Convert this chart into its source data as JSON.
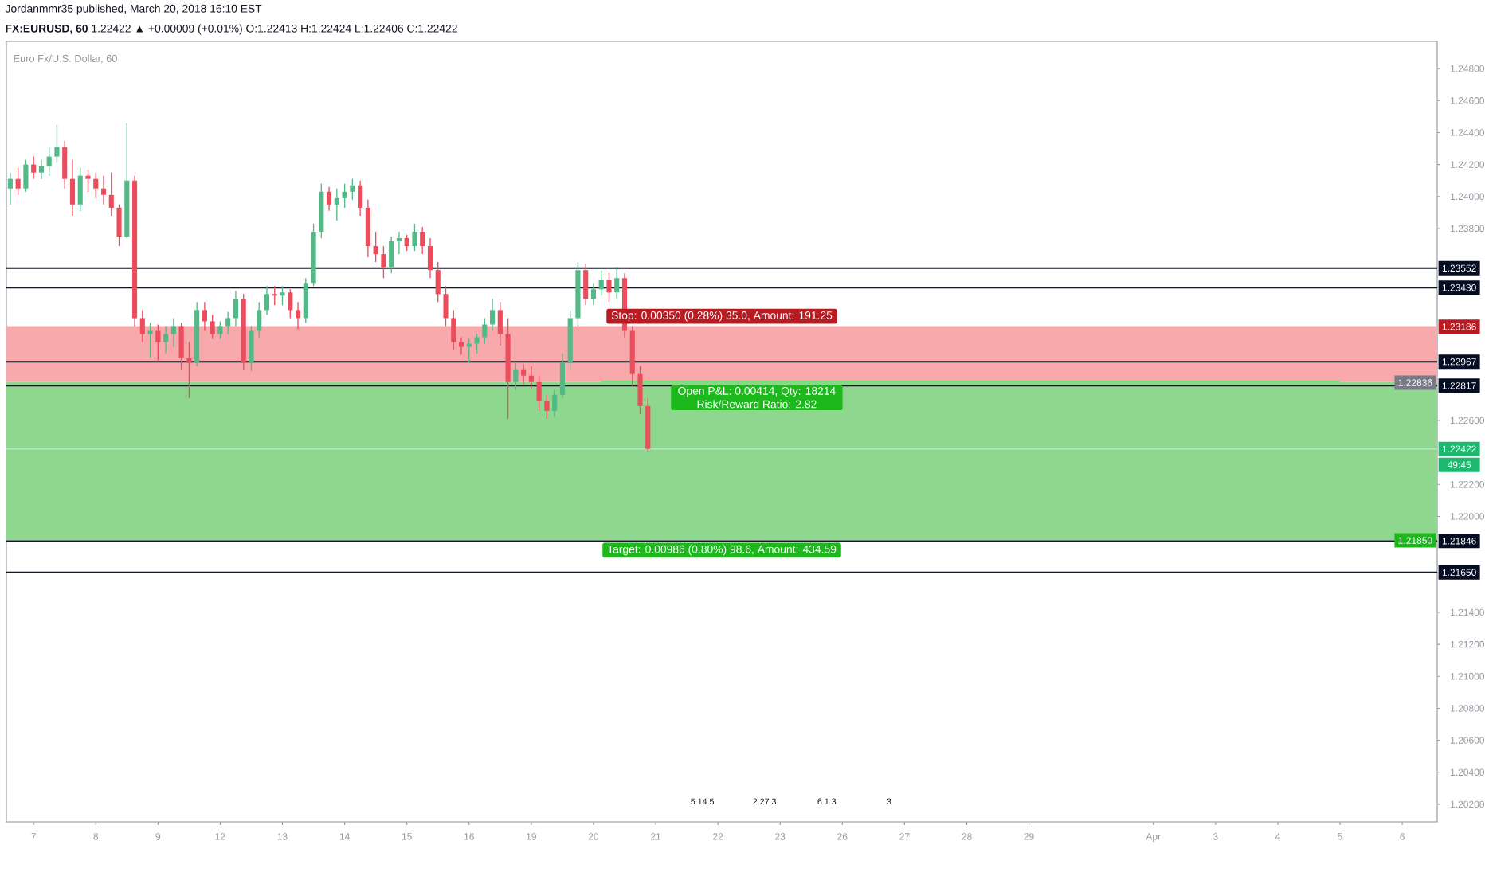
{
  "chart_data": {
    "type": "candlestick",
    "title": "**FX:EURUSD, 60** 1.22422 ▲ +0.00009 (+0.01%) O:1.22413 H:1.22424 L:1.22406 C:1.22422",
    "subtitle": "Euro Fx/U.S. Dollar, 60",
    "annotations": [
      "Jordanmmr35 published, March 20, 2018 16:10 EST",
      "5 14 5",
      "2 27 3",
      "6 1 3",
      "3",
      {
        "text": "1.23186",
        "y": 1.23186
      },
      {
        "text": "1.22836",
        "y": 1.22836
      },
      {
        "text": "1.21850",
        "y": 1.2185
      },
      {
        "text": "49:45",
        "y": 1.22422
      }
    ],
    "categories": [
      null,
      null,
      null,
      "7",
      null,
      null,
      null,
      null,
      null,
      null,
      null,
      "8",
      null,
      null,
      null,
      null,
      null,
      null,
      null,
      "9",
      null,
      null,
      null,
      null,
      null,
      null,
      null,
      "12",
      null,
      null,
      null,
      null,
      null,
      null,
      null,
      "13",
      null,
      null,
      null,
      null,
      null,
      null,
      null,
      "14",
      null,
      null,
      null,
      null,
      null,
      null,
      null,
      "15",
      null,
      null,
      null,
      null,
      null,
      null,
      null,
      "16",
      null,
      null,
      null,
      null,
      null,
      null,
      null,
      "19",
      null,
      null,
      null,
      null,
      null,
      null,
      null,
      "20",
      null,
      null,
      null,
      null,
      null,
      null,
      null,
      "21",
      null,
      null,
      null,
      null,
      null,
      null,
      null,
      "22",
      null,
      null,
      null,
      null,
      null,
      null,
      null,
      "23",
      null,
      null,
      null,
      null,
      null,
      null,
      null,
      "26",
      null,
      null,
      null,
      null,
      null,
      null,
      null,
      "27",
      null,
      null,
      null,
      null,
      null,
      null,
      null,
      "28",
      null,
      null,
      null,
      null,
      null,
      null,
      null,
      "29",
      null,
      null,
      null,
      null,
      null,
      null,
      null,
      null,
      null,
      null,
      null,
      null,
      null,
      null,
      null,
      "Apr",
      null,
      null,
      null,
      null,
      null,
      null,
      null,
      "3",
      null,
      null,
      null,
      null,
      null,
      null,
      null,
      "4",
      null,
      null,
      null,
      null,
      null,
      null,
      null,
      "5",
      null,
      null,
      null,
      null,
      null,
      null,
      null,
      "6",
      null,
      null,
      null,
      null
    ],
    "ohlc": [
      [
        1.2405,
        1.2415,
        1.2395,
        1.2411
      ],
      [
        1.2411,
        1.2418,
        1.2401,
        1.2405
      ],
      [
        1.2405,
        1.2423,
        1.2403,
        1.242
      ],
      [
        1.242,
        1.2425,
        1.2411,
        1.2415
      ],
      [
        1.2415,
        1.2423,
        1.2411,
        1.2419
      ],
      [
        1.2419,
        1.2431,
        1.2413,
        1.2425
      ],
      [
        1.2425,
        1.2445,
        1.2421,
        1.2431
      ],
      [
        1.2431,
        1.2435,
        1.2405,
        1.2411
      ],
      [
        1.2411,
        1.2423,
        1.2388,
        1.2395
      ],
      [
        1.2395,
        1.2418,
        1.2391,
        1.2413
      ],
      [
        1.2413,
        1.2417,
        1.2403,
        1.2411
      ],
      [
        1.2411,
        1.2415,
        1.2399,
        1.2405
      ],
      [
        1.2405,
        1.2413,
        1.2395,
        1.2401
      ],
      [
        1.2401,
        1.2415,
        1.2388,
        1.2393
      ],
      [
        1.2393,
        1.2395,
        1.2369,
        1.2375
      ],
      [
        1.2375,
        1.2446,
        1.2374,
        1.241
      ],
      [
        1.241,
        1.2413,
        1.2319,
        1.2324
      ],
      [
        1.2324,
        1.2329,
        1.2309,
        1.2314
      ],
      [
        1.2314,
        1.2321,
        1.2299,
        1.2316
      ],
      [
        1.2316,
        1.232,
        1.2297,
        1.2309
      ],
      [
        1.2309,
        1.2319,
        1.2302,
        1.2314
      ],
      [
        1.2314,
        1.2324,
        1.2306,
        1.2319
      ],
      [
        1.2319,
        1.2321,
        1.2292,
        1.2299
      ],
      [
        1.2299,
        1.2309,
        1.2274,
        1.2296
      ],
      [
        1.2296,
        1.2334,
        1.2294,
        1.2329
      ],
      [
        1.2329,
        1.2334,
        1.2316,
        1.2322
      ],
      [
        1.2322,
        1.2326,
        1.2311,
        1.2314
      ],
      [
        1.2314,
        1.2322,
        1.2311,
        1.2319
      ],
      [
        1.2319,
        1.2328,
        1.2314,
        1.2324
      ],
      [
        1.2324,
        1.2341,
        1.2319,
        1.2336
      ],
      [
        1.2336,
        1.2339,
        1.2292,
        1.2296
      ],
      [
        1.2296,
        1.2319,
        1.2291,
        1.2316
      ],
      [
        1.2316,
        1.2334,
        1.2312,
        1.2329
      ],
      [
        1.2329,
        1.2344,
        1.2326,
        1.2339
      ],
      [
        1.2339,
        1.2344,
        1.2332,
        1.2338
      ],
      [
        1.2338,
        1.2344,
        1.2332,
        1.234
      ],
      [
        1.234,
        1.2342,
        1.2324,
        1.2329
      ],
      [
        1.2329,
        1.2334,
        1.2317,
        1.2324
      ],
      [
        1.2324,
        1.2349,
        1.2321,
        1.2346
      ],
      [
        1.2346,
        1.2383,
        1.2344,
        1.2378
      ],
      [
        1.2378,
        1.2408,
        1.2374,
        1.2403
      ],
      [
        1.2403,
        1.2406,
        1.2391,
        1.2395
      ],
      [
        1.2395,
        1.2405,
        1.2385,
        1.2399
      ],
      [
        1.2399,
        1.2408,
        1.2393,
        1.2403
      ],
      [
        1.2403,
        1.2411,
        1.2398,
        1.2407
      ],
      [
        1.2407,
        1.241,
        1.2388,
        1.2393
      ],
      [
        1.2393,
        1.2398,
        1.2362,
        1.2369
      ],
      [
        1.2369,
        1.2378,
        1.2359,
        1.2364
      ],
      [
        1.2364,
        1.2369,
        1.2349,
        1.2356
      ],
      [
        1.2356,
        1.2375,
        1.2352,
        1.2372
      ],
      [
        1.2372,
        1.2378,
        1.2364,
        1.2374
      ],
      [
        1.2374,
        1.2376,
        1.2366,
        1.2369
      ],
      [
        1.2369,
        1.2383,
        1.2366,
        1.2378
      ],
      [
        1.2378,
        1.2381,
        1.2364,
        1.2369
      ],
      [
        1.2369,
        1.2374,
        1.2349,
        1.2354
      ],
      [
        1.2354,
        1.2359,
        1.2334,
        1.2339
      ],
      [
        1.2339,
        1.2344,
        1.2319,
        1.2324
      ],
      [
        1.2324,
        1.2329,
        1.2304,
        1.2309
      ],
      [
        1.2309,
        1.2312,
        1.2301,
        1.2306
      ],
      [
        1.2306,
        1.2311,
        1.2296,
        1.2308
      ],
      [
        1.2308,
        1.2314,
        1.2302,
        1.2312
      ],
      [
        1.2312,
        1.2324,
        1.2308,
        1.232
      ],
      [
        1.232,
        1.2336,
        1.2316,
        1.2329
      ],
      [
        1.2329,
        1.2334,
        1.2307,
        1.2314
      ],
      [
        1.2314,
        1.2324,
        1.2261,
        1.2284
      ],
      [
        1.2284,
        1.2296,
        1.2279,
        1.2292
      ],
      [
        1.2292,
        1.2295,
        1.2282,
        1.2288
      ],
      [
        1.2288,
        1.2294,
        1.228,
        1.2284
      ],
      [
        1.2284,
        1.2288,
        1.2266,
        1.2272
      ],
      [
        1.2272,
        1.2276,
        1.2261,
        1.2266
      ],
      [
        1.2266,
        1.2279,
        1.2262,
        1.2276
      ],
      [
        1.2276,
        1.2302,
        1.2274,
        1.2296
      ],
      [
        1.2296,
        1.2329,
        1.2292,
        1.2324
      ],
      [
        1.2324,
        1.2359,
        1.2319,
        1.2354
      ],
      [
        1.2354,
        1.2358,
        1.2332,
        1.2336
      ],
      [
        1.2336,
        1.2346,
        1.2332,
        1.2342
      ],
      [
        1.2342,
        1.2354,
        1.2338,
        1.2348
      ],
      [
        1.2348,
        1.2352,
        1.2334,
        1.234
      ],
      [
        1.234,
        1.2356,
        1.2336,
        1.2349
      ],
      [
        1.2349,
        1.2352,
        1.2312,
        1.2316
      ],
      [
        1.2316,
        1.2319,
        1.2281,
        1.2289
      ],
      [
        1.2289,
        1.2294,
        1.2264,
        1.2269
      ],
      [
        1.2269,
        1.2274,
        1.224,
        1.22422
      ],
      null,
      null,
      null,
      null,
      null,
      null,
      null,
      null,
      null,
      null,
      null,
      null,
      null,
      null,
      null,
      null,
      null,
      null,
      null,
      null,
      null,
      null,
      null,
      null,
      null,
      null,
      null,
      null,
      null,
      null,
      null,
      null,
      null,
      null,
      null,
      null,
      null,
      null,
      null,
      null,
      null,
      null,
      null,
      null,
      null,
      null,
      null,
      null,
      null,
      null,
      null,
      null,
      null,
      null,
      null,
      null,
      null,
      null,
      null,
      null,
      null,
      null,
      null,
      null,
      null,
      null,
      null,
      null,
      null,
      null,
      null,
      null,
      null,
      null,
      null,
      null,
      null,
      null,
      null,
      null,
      null,
      null,
      null,
      null,
      null,
      null,
      null,
      null,
      null,
      null,
      null,
      null,
      null,
      null,
      null,
      null,
      null,
      null,
      null,
      null,
      null
    ],
    "ylim": [
      1.2009,
      1.2497
    ],
    "yticks": [
      {
        "value": 1.248,
        "label": "1.24800"
      },
      {
        "value": 1.246,
        "label": "1.24600"
      },
      {
        "value": 1.244,
        "label": "1.24400"
      },
      {
        "value": 1.242,
        "label": "1.24200"
      },
      {
        "value": 1.24,
        "label": "1.24000"
      },
      {
        "value": 1.238,
        "label": "1.23800"
      },
      {
        "value": 1.226,
        "label": "1.22600"
      },
      {
        "value": 1.222,
        "label": "1.22200"
      },
      {
        "value": 1.22,
        "label": "1.22000"
      },
      {
        "value": 1.214,
        "label": "1.21400"
      },
      {
        "value": 1.212,
        "label": "1.21200"
      },
      {
        "value": 1.21,
        "label": "1.21000"
      },
      {
        "value": 1.208,
        "label": "1.20800"
      },
      {
        "value": 1.206,
        "label": "1.20600"
      },
      {
        "value": 1.204,
        "label": "1.20400"
      },
      {
        "value": 1.202,
        "label": "1.20200"
      }
    ],
    "ref_lines": [
      {
        "axis": "y",
        "value": 1.23552,
        "label": "1.23552",
        "color": "#131722"
      },
      {
        "axis": "y",
        "value": 1.2343,
        "label": "1.23430",
        "color": "#131722"
      },
      {
        "axis": "y",
        "value": 1.22967,
        "label": "1.22967",
        "color": "#131722"
      },
      {
        "axis": "y",
        "value": 1.22817,
        "label": "1.22817",
        "color": "#131722"
      },
      {
        "axis": "y",
        "value": 1.21846,
        "label": "1.21846",
        "color": "#131722"
      },
      {
        "axis": "y",
        "value": 1.2165,
        "label": "1.21650",
        "color": "#131722"
      },
      {
        "axis": "y",
        "value": 1.22422,
        "label": "1.22422",
        "color": "#b5e6cf"
      }
    ],
    "bands": [
      {
        "axis": "y",
        "from": 1.2284,
        "to": 1.2319,
        "label": "Stop: 0.00350 (0.28%) 35.0, Amount: 191.25",
        "color": "#f7a9ac"
      },
      {
        "axis": "y",
        "from": 1.2185,
        "to": 1.2284,
        "label": "Target: 0.00986 (0.80%) 98.6, Amount: 434.59",
        "color": "#8fd68f"
      }
    ],
    "series": [
      {
        "type": "line",
        "color": "#7fdc7f",
        "values": [
          null,
          null,
          null,
          null,
          null,
          null,
          null,
          null,
          null,
          null,
          null,
          null,
          null,
          null,
          null,
          null,
          null,
          null,
          null,
          null,
          null,
          null,
          null,
          null,
          null,
          null,
          null,
          null,
          null,
          null,
          null,
          null,
          null,
          null,
          null,
          null,
          null,
          null,
          null,
          null,
          null,
          null,
          null,
          null,
          null,
          null,
          null,
          null,
          null,
          null,
          null,
          null,
          null,
          null,
          null,
          null,
          null,
          null,
          null,
          null,
          null,
          null,
          null,
          null,
          null,
          null,
          null,
          null,
          null,
          null,
          null,
          null,
          null,
          null,
          null,
          null,
          1.2284,
          1.2284,
          1.2284,
          1.2284,
          1.2284,
          1.2284,
          1.2284,
          1.2284,
          1.2284,
          1.2284,
          1.2284,
          1.2284,
          1.2284,
          1.2284,
          1.2284,
          1.2284,
          1.2284,
          1.2284,
          1.2284,
          1.2284,
          1.2284,
          1.2284,
          1.2284,
          1.2284,
          1.2284,
          1.2284,
          1.2284,
          1.2284,
          1.2284,
          1.2284,
          1.2284,
          1.2284,
          1.2284,
          1.2284,
          1.2284,
          1.2284,
          1.2284,
          1.2284,
          1.2284,
          1.2284,
          1.2284,
          1.2284,
          1.2284,
          1.2284,
          1.2284,
          1.2284,
          1.2284,
          1.2284,
          1.2284,
          1.2284,
          1.2284,
          1.2284,
          1.2284,
          1.2284,
          1.2284,
          1.2284,
          1.2284,
          1.2284,
          1.2284,
          1.2284,
          1.2284,
          1.2284,
          1.2284,
          1.2284,
          1.2284,
          1.2284,
          1.2284,
          1.2284,
          1.2284,
          1.2284,
          1.2284,
          1.2284,
          1.2284,
          1.2284,
          1.2284,
          1.2284,
          1.2284,
          1.2284,
          1.2284,
          1.2284,
          1.2284,
          1.2284,
          1.2284,
          1.2284,
          1.2284,
          1.2284,
          1.2284,
          1.2284,
          1.2284,
          1.2284,
          1.2284,
          1.2284,
          1.2284,
          1.2284,
          1.2284,
          1.2284,
          null,
          null,
          null,
          null,
          null,
          null,
          null,
          null,
          null,
          null,
          null,
          null
        ],
        "value_labels": [
          null,
          null,
          null,
          null,
          null,
          null,
          null,
          null,
          null,
          null,
          null,
          null,
          null,
          null,
          null,
          null,
          null,
          null,
          null,
          null,
          null,
          null,
          null,
          null,
          null,
          null,
          null,
          null,
          null,
          null,
          null,
          null,
          null,
          null,
          null,
          null,
          null,
          null,
          null,
          null,
          null,
          null,
          null,
          null,
          null,
          null,
          null,
          null,
          null,
          null,
          null,
          null,
          null,
          null,
          null,
          null,
          null,
          null,
          null,
          null,
          null,
          null,
          null,
          null,
          null,
          null,
          null,
          null,
          null,
          null,
          null,
          null,
          null,
          null,
          null,
          null,
          null,
          null,
          null,
          null,
          null,
          null,
          null,
          null,
          null,
          null,
          null,
          null,
          null,
          null,
          null,
          null,
          null,
          null,
          null,
          null,
          "Open P&L: 0.00414, Qty: 18214 Risk/Reward Ratio: 2.82",
          null,
          null,
          null,
          null,
          null,
          null,
          null,
          null,
          null,
          null,
          null,
          null,
          null,
          null,
          null,
          null,
          null,
          null,
          null,
          null,
          null,
          null,
          null,
          null,
          null,
          null,
          null,
          null,
          null,
          null,
          null,
          null,
          null,
          null,
          null,
          null,
          null,
          null,
          null,
          null,
          null,
          null,
          null,
          null,
          null,
          null,
          null,
          null,
          null,
          null,
          null,
          null,
          null,
          null,
          null,
          null,
          null,
          null,
          null,
          null,
          null,
          null,
          null,
          null,
          null,
          null,
          null,
          null,
          null,
          null,
          null,
          null,
          null,
          null,
          null,
          null,
          null,
          null,
          null,
          null,
          null,
          null,
          null,
          null,
          null,
          null,
          null
        ]
      }
    ]
  }
}
